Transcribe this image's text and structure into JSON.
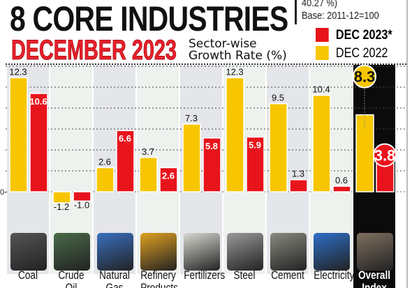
{
  "header": {
    "title": "8 CORE INDUSTRIES",
    "subtitle_month": "DECEMBER 2023",
    "chart_caption": "Sector-wise Growth Rate (%)",
    "note_partial": "40.27 %)",
    "base": "Base: 2011-12=100"
  },
  "colors": {
    "dec2023": "#e8141c",
    "dec2022": "#f7c600",
    "overall_bg": "#0b0b0b"
  },
  "chart_data": {
    "type": "bar",
    "title": "8 CORE INDUSTRIES DECEMBER 2023",
    "ylabel": "Sector-wise Growth Rate (%)",
    "categories": [
      "Coal",
      "Crude Oil",
      "Natural Gas",
      "Refinery Products",
      "Fertilizers",
      "Steel",
      "Cement",
      "Electricity",
      "Overall Index"
    ],
    "series": [
      {
        "name": "DEC 2022",
        "values": [
          12.3,
          -1.2,
          2.6,
          3.7,
          7.3,
          12.3,
          9.5,
          10.4,
          8.3
        ]
      },
      {
        "name": "DEC 2023*",
        "values": [
          10.6,
          -1.0,
          6.6,
          2.6,
          5.8,
          5.9,
          1.3,
          0.6,
          3.8
        ]
      }
    ],
    "value_labels": {
      "dec2022": [
        "12.3",
        "-1.2",
        "2.6",
        "3.7",
        "7.3",
        "12.3",
        "9.5",
        "10.4",
        "8.3"
      ],
      "dec2023": [
        "10.6",
        "-1.0",
        "6.6",
        "2.6",
        "5.8",
        "5.9",
        "1.3",
        "0.6",
        "3.8"
      ]
    },
    "y_tick_labels": [
      "0-"
    ],
    "legend": [
      "DEC 2023*",
      "DEC 2022"
    ],
    "legend_position": "top-right",
    "grid": true
  },
  "icons": [
    "coal-image",
    "crude-oil-image",
    "natural-gas-image",
    "refinery-products-image",
    "fertilizers-image",
    "steel-image",
    "cement-image",
    "electricity-image",
    "overall-index-image"
  ]
}
